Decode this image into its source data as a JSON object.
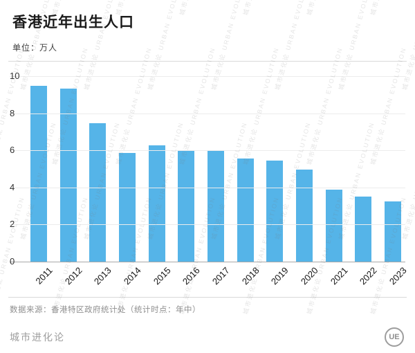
{
  "header": {
    "title": "香港近年出生人口",
    "unit": "单位：万人"
  },
  "chart_data": {
    "type": "bar",
    "title": "香港近年出生人口",
    "unit_label": "单位：万人",
    "categories": [
      "2011",
      "2012",
      "2013",
      "2014",
      "2015",
      "2016",
      "2017",
      "2018",
      "2019",
      "2020",
      "2021",
      "2022",
      "2023"
    ],
    "values": [
      9.5,
      9.35,
      7.5,
      5.9,
      6.3,
      6.05,
      6.0,
      5.6,
      5.5,
      5.0,
      3.9,
      3.55,
      3.3
    ],
    "xlabel": "",
    "ylabel": "",
    "ylim": [
      0,
      10
    ],
    "yticks": [
      0,
      2,
      4,
      6,
      8,
      10
    ],
    "bar_color": "#55b4e8",
    "grid": true,
    "legend": false
  },
  "footer": {
    "source": "数据来源：香港特区政府统计处（统计时点：年中）",
    "brand": "城市进化论",
    "logo_text": "UE"
  },
  "watermark": {
    "text": "城市进化论 URBAN EVOLUTION"
  }
}
